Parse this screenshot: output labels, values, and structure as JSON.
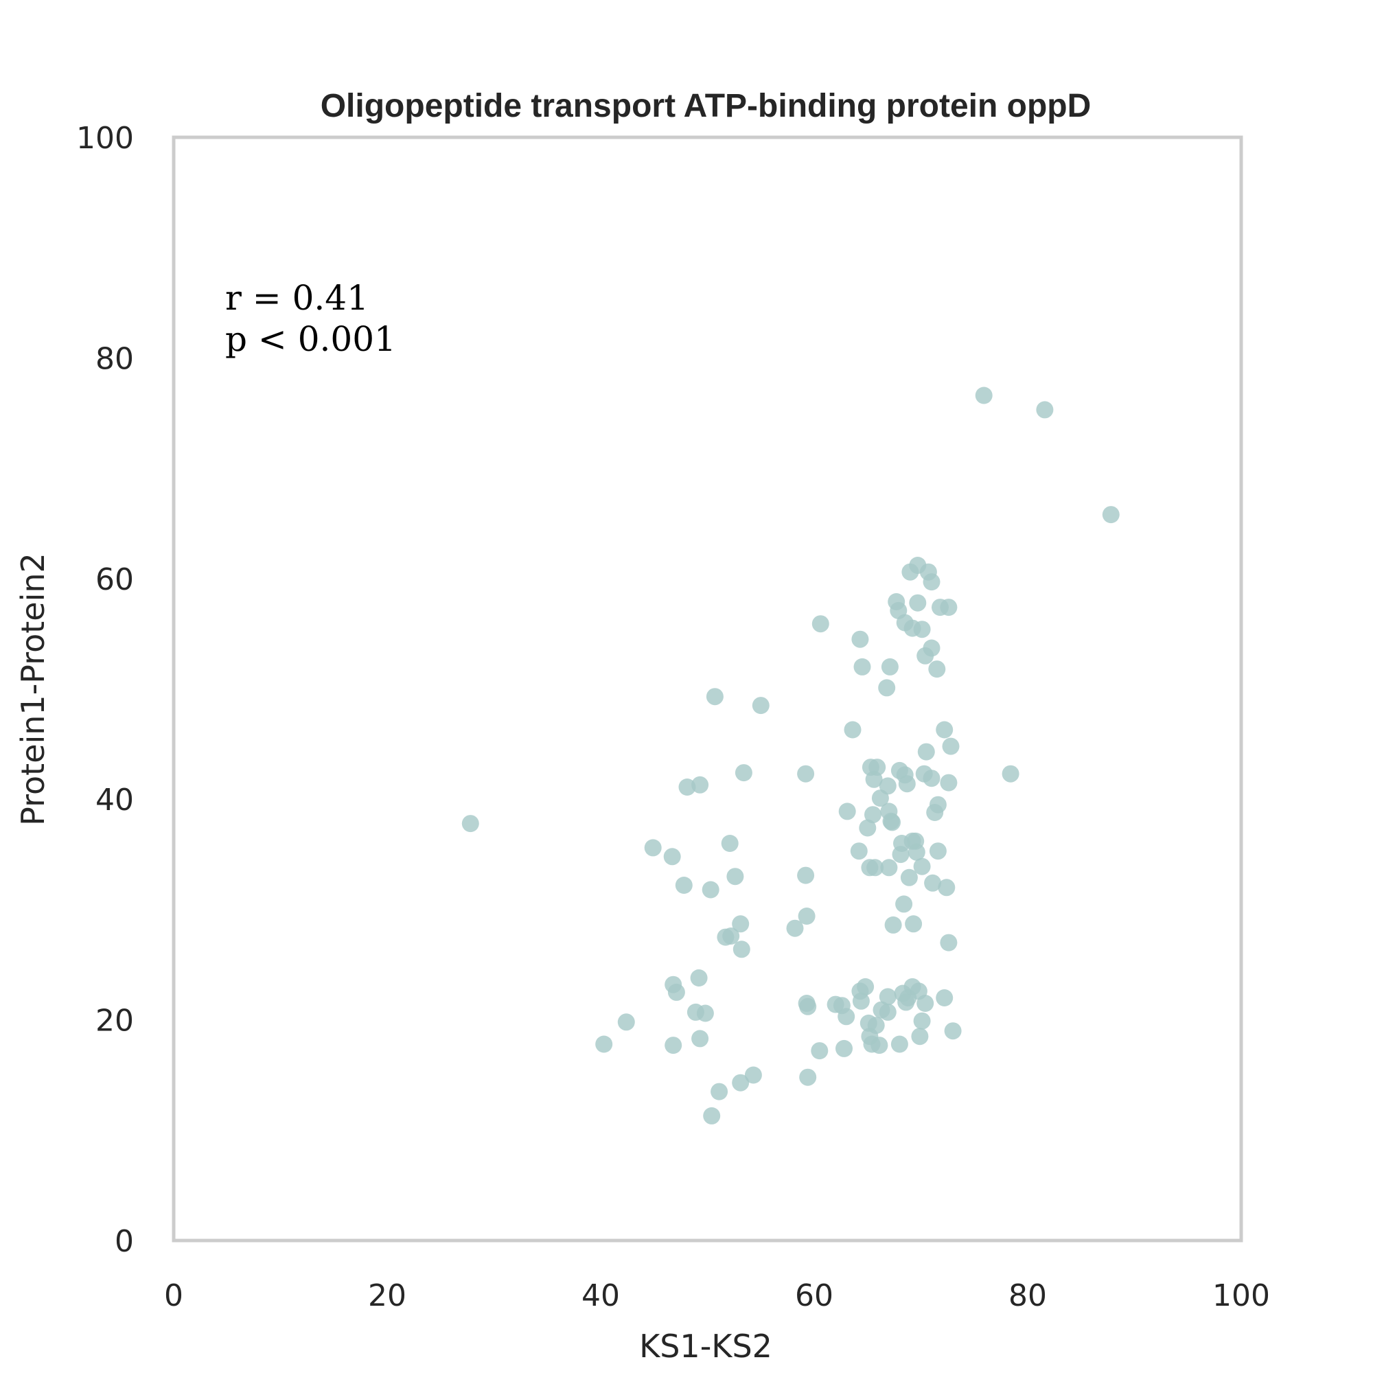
{
  "chart_data": {
    "type": "scatter",
    "title": "Oligopeptide transport ATP-binding protein oppD",
    "xlabel": "KS1-KS2",
    "ylabel": "Protein1-Protein2",
    "xlim": [
      0,
      100
    ],
    "ylim": [
      0,
      100
    ],
    "xticks": [
      "0",
      "20",
      "40",
      "60",
      "80",
      "100"
    ],
    "yticks": [
      "0",
      "20",
      "40",
      "60",
      "80",
      "100"
    ],
    "grid": false,
    "point_color": "#a5c8c7",
    "annotation": {
      "r_text": "r = 0.41",
      "p_text": "p < 0.001"
    },
    "series": [
      {
        "points": [
          [
            27.8,
            37.8
          ],
          [
            40.3,
            17.8
          ],
          [
            42.4,
            19.8
          ],
          [
            44.9,
            35.6
          ],
          [
            46.7,
            34.8
          ],
          [
            46.8,
            17.7
          ],
          [
            46.8,
            23.2
          ],
          [
            47.1,
            22.5
          ],
          [
            47.8,
            32.2
          ],
          [
            48.1,
            41.1
          ],
          [
            48.9,
            20.7
          ],
          [
            49.2,
            23.8
          ],
          [
            49.3,
            41.3
          ],
          [
            49.3,
            18.3
          ],
          [
            49.8,
            20.6
          ],
          [
            50.3,
            31.8
          ],
          [
            50.4,
            11.3
          ],
          [
            50.7,
            49.3
          ],
          [
            51.1,
            13.5
          ],
          [
            51.7,
            27.5
          ],
          [
            52.1,
            36.0
          ],
          [
            52.2,
            27.6
          ],
          [
            52.6,
            33.0
          ],
          [
            53.1,
            28.7
          ],
          [
            53.2,
            26.4
          ],
          [
            53.1,
            14.3
          ],
          [
            53.4,
            42.4
          ],
          [
            54.3,
            15.0
          ],
          [
            55.0,
            48.5
          ],
          [
            58.2,
            28.3
          ],
          [
            59.2,
            42.3
          ],
          [
            59.3,
            29.4
          ],
          [
            59.2,
            33.1
          ],
          [
            59.3,
            21.5
          ],
          [
            59.4,
            21.2
          ],
          [
            59.4,
            14.8
          ],
          [
            60.5,
            17.2
          ],
          [
            60.6,
            55.9
          ],
          [
            62.0,
            21.4
          ],
          [
            62.6,
            21.3
          ],
          [
            62.8,
            17.4
          ],
          [
            63.0,
            20.3
          ],
          [
            63.1,
            38.9
          ],
          [
            63.6,
            46.3
          ],
          [
            64.3,
            54.5
          ],
          [
            64.2,
            35.3
          ],
          [
            64.3,
            22.6
          ],
          [
            64.4,
            21.7
          ],
          [
            64.5,
            52.0
          ],
          [
            64.8,
            23.0
          ],
          [
            65.0,
            37.4
          ],
          [
            65.1,
            19.7
          ],
          [
            65.2,
            18.5
          ],
          [
            65.2,
            33.8
          ],
          [
            65.3,
            42.9
          ],
          [
            65.4,
            17.8
          ],
          [
            65.5,
            38.6
          ],
          [
            65.6,
            41.8
          ],
          [
            65.7,
            33.8
          ],
          [
            65.8,
            19.5
          ],
          [
            65.9,
            42.9
          ],
          [
            66.1,
            17.7
          ],
          [
            66.2,
            40.1
          ],
          [
            66.3,
            20.9
          ],
          [
            66.8,
            50.1
          ],
          [
            66.9,
            22.1
          ],
          [
            66.9,
            41.2
          ],
          [
            66.9,
            20.7
          ],
          [
            67.0,
            33.8
          ],
          [
            67.0,
            38.9
          ],
          [
            67.1,
            52.0
          ],
          [
            67.2,
            38.0
          ],
          [
            67.3,
            37.9
          ],
          [
            67.4,
            28.6
          ],
          [
            67.7,
            57.9
          ],
          [
            67.9,
            57.1
          ],
          [
            68.0,
            17.8
          ],
          [
            68.0,
            42.6
          ],
          [
            68.1,
            35.0
          ],
          [
            68.2,
            36.0
          ],
          [
            68.3,
            22.4
          ],
          [
            68.4,
            30.5
          ],
          [
            68.5,
            56.0
          ],
          [
            68.5,
            42.2
          ],
          [
            68.6,
            21.6
          ],
          [
            68.7,
            41.4
          ],
          [
            68.8,
            22.0
          ],
          [
            68.9,
            32.9
          ],
          [
            69.0,
            60.6
          ],
          [
            69.2,
            55.5
          ],
          [
            69.2,
            23.0
          ],
          [
            69.2,
            36.2
          ],
          [
            69.3,
            28.7
          ],
          [
            69.5,
            36.2
          ],
          [
            69.6,
            35.2
          ],
          [
            69.7,
            57.8
          ],
          [
            69.7,
            61.2
          ],
          [
            69.8,
            22.6
          ],
          [
            69.9,
            18.5
          ],
          [
            70.1,
            55.4
          ],
          [
            70.1,
            33.9
          ],
          [
            70.1,
            19.9
          ],
          [
            70.3,
            42.3
          ],
          [
            70.4,
            53.0
          ],
          [
            70.4,
            21.5
          ],
          [
            70.5,
            44.3
          ],
          [
            70.7,
            60.6
          ],
          [
            71.0,
            41.9
          ],
          [
            71.0,
            53.7
          ],
          [
            71.0,
            59.7
          ],
          [
            71.1,
            32.4
          ],
          [
            71.3,
            38.8
          ],
          [
            71.5,
            51.8
          ],
          [
            71.6,
            39.5
          ],
          [
            71.6,
            35.3
          ],
          [
            71.8,
            57.4
          ],
          [
            72.2,
            46.3
          ],
          [
            72.2,
            22.0
          ],
          [
            72.4,
            32.0
          ],
          [
            72.6,
            41.5
          ],
          [
            72.6,
            57.4
          ],
          [
            72.6,
            27.0
          ],
          [
            72.8,
            44.8
          ],
          [
            73.0,
            19.0
          ],
          [
            75.9,
            76.6
          ],
          [
            78.4,
            42.3
          ],
          [
            81.6,
            75.3
          ],
          [
            87.8,
            65.8
          ]
        ]
      }
    ]
  }
}
